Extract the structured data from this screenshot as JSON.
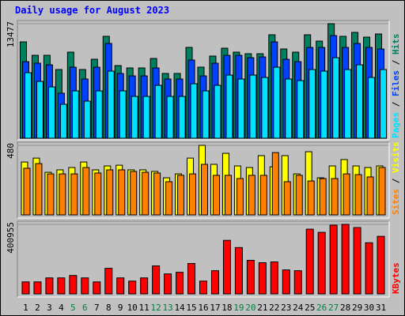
{
  "chart_data": {
    "type": "bar",
    "title": "Daily usage for August 2023",
    "legend_separator": " / ",
    "categories": [
      "1",
      "2",
      "3",
      "4",
      "5",
      "6",
      "7",
      "8",
      "9",
      "10",
      "11",
      "12",
      "13",
      "14",
      "15",
      "16",
      "17",
      "18",
      "19",
      "20",
      "21",
      "22",
      "23",
      "24",
      "25",
      "26",
      "27",
      "28",
      "29",
      "30",
      "31"
    ],
    "category_colors": [
      "#000000",
      "#000000",
      "#000000",
      "#000000",
      "#008040",
      "#008040",
      "#000000",
      "#000000",
      "#000000",
      "#000000",
      "#000000",
      "#008040",
      "#008040",
      "#000000",
      "#000000",
      "#000000",
      "#000000",
      "#000000",
      "#008040",
      "#008040",
      "#000000",
      "#000000",
      "#000000",
      "#000000",
      "#000000",
      "#008040",
      "#008040",
      "#000000",
      "#000000",
      "#000000",
      "#000000"
    ],
    "panels": [
      {
        "ylim": [
          0,
          13477
        ],
        "yticks": [
          13477
        ],
        "series": [
          {
            "name": "Pages",
            "color": "#00e0ff",
            "values": [
              7711,
              6689,
              6039,
              3995,
              5574,
              4366,
              5574,
              7897,
              5574,
              4924,
              4924,
              6224,
              4924,
              4924,
              6410,
              5574,
              6224,
              7432,
              6968,
              7432,
              7153,
              8361,
              6968,
              6782,
              8082,
              7897,
              9476,
              8082,
              8640,
              7153,
              8082
            ]
          },
          {
            "name": "Files",
            "color": "#0040ff",
            "values": [
              9011,
              8826,
              8640,
              5295,
              8361,
              6968,
              8361,
              11148,
              7618,
              7339,
              7339,
              8268,
              6968,
              6968,
              9197,
              7339,
              8826,
              9755,
              9755,
              9476,
              9569,
              11334,
              9290,
              9011,
              10684,
              10684,
              12077,
              10684,
              11148,
              10684,
              10498
            ]
          },
          {
            "name": "Hits",
            "color": "#008060",
            "values": [
              11337,
              9757,
              9757,
              8085,
              10130,
              8085,
              9294,
              11989,
              8550,
              8271,
              8271,
              9387,
              7621,
              7621,
              10688,
              8364,
              9666,
              10595,
              10130,
              9944,
              9944,
              12175,
              10502,
              10130,
              12175,
              11431,
              13477,
              11989,
              12454,
              11896,
              12268
            ]
          }
        ]
      },
      {
        "ylim": [
          0,
          480
        ],
        "yticks": [
          480
        ],
        "series": [
          {
            "name": "Sites",
            "color": "#ff8000",
            "values": [
              322,
              354,
              283,
              283,
              283,
              327,
              289,
              311,
              311,
              300,
              294,
              289,
              229,
              273,
              283,
              349,
              273,
              273,
              251,
              273,
              273,
              430,
              229,
              273,
              234,
              251,
              251,
              283,
              278,
              262,
              327
            ]
          },
          {
            "name": "Visits",
            "color": "#ffff00",
            "values": [
              365,
              392,
              294,
              311,
              327,
              365,
              311,
              338,
              343,
              311,
              311,
              300,
              256,
              283,
              392,
              480,
              349,
              425,
              338,
              327,
              409,
              332,
              409,
              283,
              436,
              256,
              338,
              382,
              338,
              327,
              338
            ]
          }
        ]
      },
      {
        "ylim": [
          0,
          400955
        ],
        "yticks": [
          400955
        ],
        "series": [
          {
            "name": "KBytes",
            "color": "#ff0000",
            "values": [
              69135,
              69135,
              92180,
              92180,
              106007,
              92180,
              69135,
              147488,
              92180,
              73744,
              92180,
              161315,
              115225,
              124443,
              175142,
              73744,
              133661,
              308803,
              267322,
              193578,
              179751,
              184360,
              138270,
              133661,
              373329,
              354893,
              396346,
              400955,
              382549,
              294976,
              331848
            ]
          }
        ]
      }
    ]
  }
}
